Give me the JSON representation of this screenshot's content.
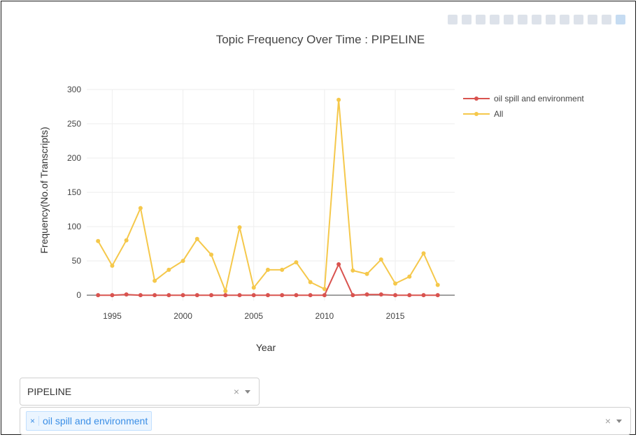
{
  "chart_data": {
    "type": "line",
    "title": "Topic Frequency Over Time : PIPELINE",
    "xlabel": "Year",
    "ylabel": "Frequency(No.of Transcripts)",
    "xlim": [
      1993.2,
      2019.2
    ],
    "ylim": [
      -8,
      300
    ],
    "x_ticks": [
      1995,
      2000,
      2005,
      2010,
      2015
    ],
    "y_ticks": [
      0,
      50,
      100,
      150,
      200,
      250,
      300
    ],
    "grid": true,
    "legend_position": "top-right",
    "x": [
      1994,
      1995,
      1996,
      1997,
      1998,
      1999,
      2000,
      2001,
      2002,
      2003,
      2004,
      2005,
      2006,
      2007,
      2008,
      2009,
      2010,
      2011,
      2012,
      2013,
      2014,
      2015,
      2016,
      2017,
      2018
    ],
    "series": [
      {
        "name": "oil spill and environment",
        "color": "#d9534f",
        "values": [
          0,
          0,
          1,
          0,
          0,
          0,
          0,
          0,
          0,
          0,
          0,
          0,
          0,
          0,
          0,
          0,
          0,
          45,
          0,
          1,
          1,
          0,
          0,
          0,
          0
        ]
      },
      {
        "name": "All",
        "color": "#f5c84b",
        "values": [
          79,
          43,
          80,
          127,
          21,
          37,
          50,
          82,
          59,
          6,
          99,
          11,
          37,
          37,
          48,
          19,
          9,
          285,
          36,
          31,
          52,
          17,
          27,
          61,
          15
        ]
      }
    ]
  },
  "filters": {
    "topic_value": "PIPELINE",
    "topic_clear": "×",
    "subtopic_chip": "oil spill and environment",
    "chip_remove": "×",
    "subtopic_clear": "×"
  }
}
